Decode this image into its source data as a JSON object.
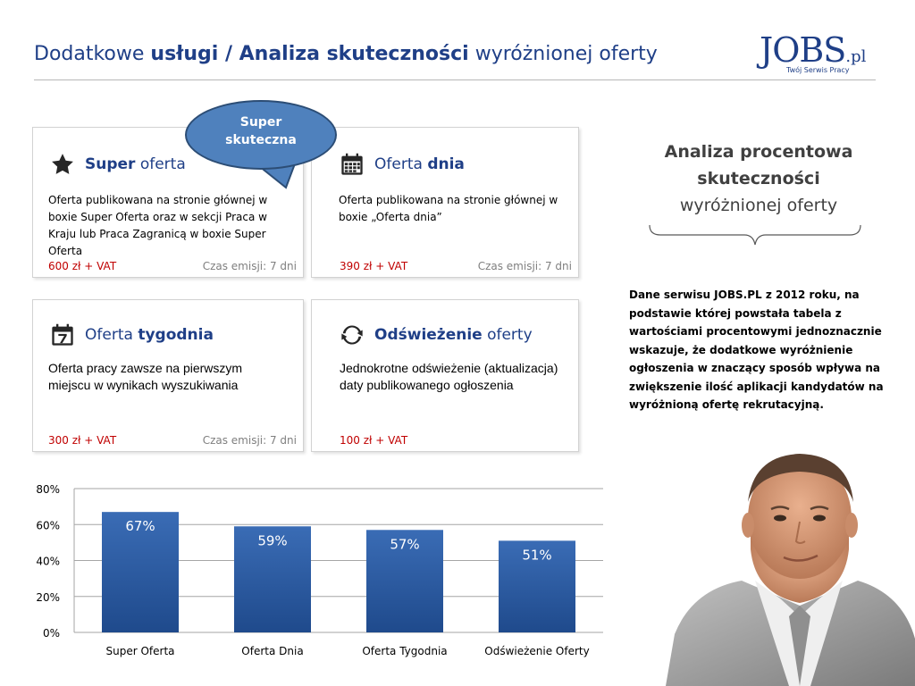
{
  "header": {
    "title_part1": "Dodatkowe ",
    "title_part2": "usługi / Analiza skuteczności",
    "title_part3": " wyróżnionej oferty"
  },
  "logo": {
    "main": "JOBS",
    "suffix": ".pl",
    "tagline": "Twój Serwis Pracy"
  },
  "bubble": {
    "text_line1": "Super",
    "text_line2": "skuteczna"
  },
  "cards": [
    {
      "title_plain_before": "",
      "title_bold": "Super",
      "title_plain_after": " oferta",
      "icon": "star-icon",
      "description": "Oferta publikowana na stronie głównej w boxie Super Oferta oraz w sekcji  Praca w Kraju lub Praca Zagranicą w boxie Super Oferta",
      "price": "600 zł + VAT",
      "emission": "Czas emisji: 7 dni"
    },
    {
      "title_plain_before": "Oferta ",
      "title_bold": "dnia",
      "title_plain_after": "",
      "icon": "calendar-icon",
      "description": "Oferta publikowana na stronie głównej w boxie „Oferta dnia”",
      "price": "390 zł + VAT",
      "emission": "Czas emisji: 7 dni"
    },
    {
      "title_plain_before": "Oferta ",
      "title_bold": "tygodnia",
      "title_plain_after": "",
      "icon": "calendar-7-icon",
      "description": "Oferta pracy zawsze na pierwszym miejscu w wynikach wyszukiwania",
      "price": "300 zł + VAT",
      "emission": "Czas emisji: 7 dni"
    },
    {
      "title_plain_before": "",
      "title_bold": "Odświeżenie",
      "title_plain_after": " oferty",
      "icon": "refresh-icon",
      "description": "Jednokrotne odświeżenie (aktualizacja) daty publikowanego ogłoszenia",
      "price": "100 zł + VAT",
      "emission": ""
    }
  ],
  "side": {
    "title_line1": "Analiza procentowa",
    "title_line2": "skuteczności",
    "title_line3": "wyróżnionej oferty",
    "text": "Dane serwisu JOBS.PL z 2012 roku, na podstawie której powstała tabela z wartościami procentowymi jednoznacznie wskazuje, że dodatkowe wyróżnienie ogłoszenia w znaczący sposób wpływa na zwiększenie ilość aplikacji kandydatów na wyróżnioną ofertę rekrutacyjną."
  },
  "chart_data": {
    "type": "bar",
    "categories": [
      "Super Oferta",
      "Oferta Dnia",
      "Oferta Tygodnia",
      "Odświeżenie Oferty"
    ],
    "values": [
      67,
      59,
      57,
      51
    ],
    "value_labels": [
      "67%",
      "59%",
      "57%",
      "51%"
    ],
    "ylim": [
      0,
      80
    ],
    "yticks": [
      0,
      20,
      40,
      60,
      80
    ],
    "ytick_labels": [
      "0%",
      "20%",
      "40%",
      "60%",
      "80%"
    ],
    "grid": true,
    "bar_color": "#3a6cb5",
    "bar_color_dark": "#1f4a8c"
  },
  "colors": {
    "brand_blue": "#1f3f87",
    "price_red": "#c00000",
    "bubble_blue": "#4f81bd"
  }
}
